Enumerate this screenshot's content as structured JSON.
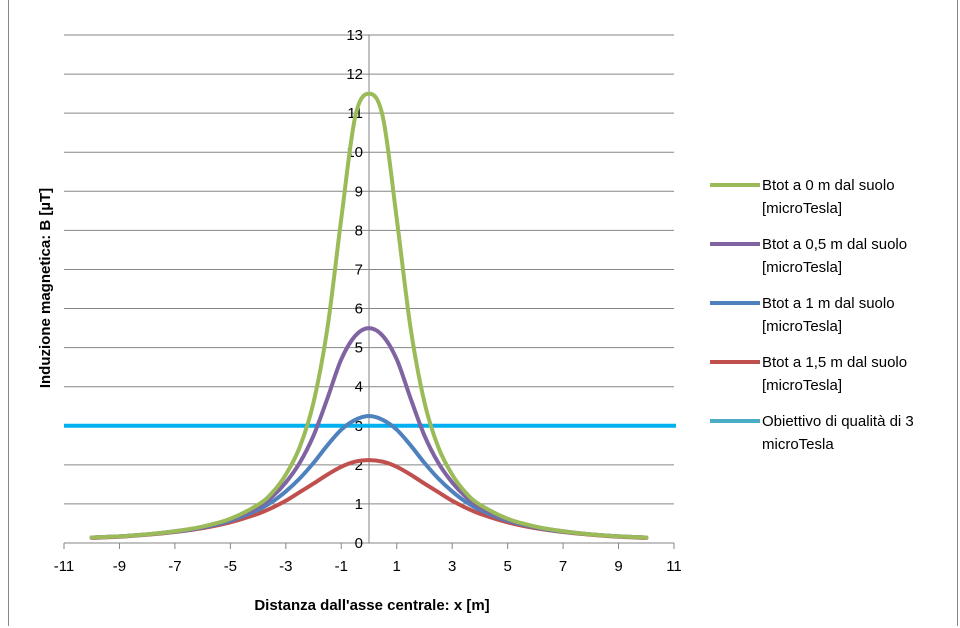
{
  "chart_data": {
    "type": "line",
    "xlabel": "Distanza dall'asse centrale: x [m]",
    "ylabel": "Induzione magnetica: B [µT]",
    "xlim": [
      -11,
      11
    ],
    "ylim": [
      0,
      13
    ],
    "xticks": [
      -11,
      -9,
      -7,
      -5,
      -3,
      -1,
      1,
      3,
      5,
      7,
      9,
      11
    ],
    "yticks": [
      0,
      1,
      2,
      3,
      4,
      5,
      6,
      7,
      8,
      9,
      10,
      11,
      12,
      13
    ],
    "grid": "horizontal",
    "legend_position": "right",
    "x": [
      -10,
      -9,
      -8,
      -7,
      -6,
      -5,
      -4,
      -3.5,
      -3,
      -2.5,
      -2,
      -1.5,
      -1,
      -0.5,
      0,
      0.5,
      1,
      1.5,
      2,
      2.5,
      3,
      3.5,
      4,
      5,
      6,
      7,
      8,
      9,
      10
    ],
    "series": [
      {
        "name": "Btot a 0 m dal suolo\n[microTesla]",
        "color": "#9BBB59",
        "values": [
          0.14,
          0.17,
          0.22,
          0.3,
          0.42,
          0.62,
          0.98,
          1.28,
          1.75,
          2.45,
          3.6,
          5.5,
          8.3,
          10.9,
          11.5,
          10.9,
          8.3,
          5.5,
          3.6,
          2.45,
          1.75,
          1.28,
          0.98,
          0.62,
          0.42,
          0.3,
          0.22,
          0.17,
          0.14
        ]
      },
      {
        "name": "Btot a 0,5 m dal suolo\n[microTesla]",
        "color": "#8064A2",
        "values": [
          0.14,
          0.17,
          0.22,
          0.3,
          0.41,
          0.6,
          0.92,
          1.18,
          1.55,
          2.05,
          2.75,
          3.7,
          4.7,
          5.3,
          5.5,
          5.3,
          4.7,
          3.7,
          2.75,
          2.05,
          1.55,
          1.18,
          0.92,
          0.6,
          0.41,
          0.3,
          0.22,
          0.17,
          0.14
        ]
      },
      {
        "name": "Btot a 1 m dal suolo\n[microTesla]",
        "color": "#4F81BD",
        "values": [
          0.14,
          0.17,
          0.22,
          0.29,
          0.4,
          0.57,
          0.85,
          1.05,
          1.32,
          1.65,
          2.05,
          2.5,
          2.9,
          3.15,
          3.25,
          3.15,
          2.9,
          2.5,
          2.05,
          1.65,
          1.32,
          1.05,
          0.85,
          0.57,
          0.4,
          0.29,
          0.22,
          0.17,
          0.14
        ]
      },
      {
        "name": "Btot a 1,5 m dal suolo\n[microTesla]",
        "color": "#C0504D",
        "values": [
          0.13,
          0.16,
          0.21,
          0.28,
          0.38,
          0.53,
          0.75,
          0.9,
          1.08,
          1.3,
          1.52,
          1.75,
          1.95,
          2.08,
          2.12,
          2.08,
          1.95,
          1.75,
          1.52,
          1.3,
          1.08,
          0.9,
          0.75,
          0.53,
          0.38,
          0.28,
          0.21,
          0.16,
          0.13
        ]
      },
      {
        "name": "Obiettivo di qualità di 3\nmicroTesla",
        "color": "#00B0F0",
        "legend_color": "#4BACC6",
        "constant": 3
      }
    ]
  }
}
